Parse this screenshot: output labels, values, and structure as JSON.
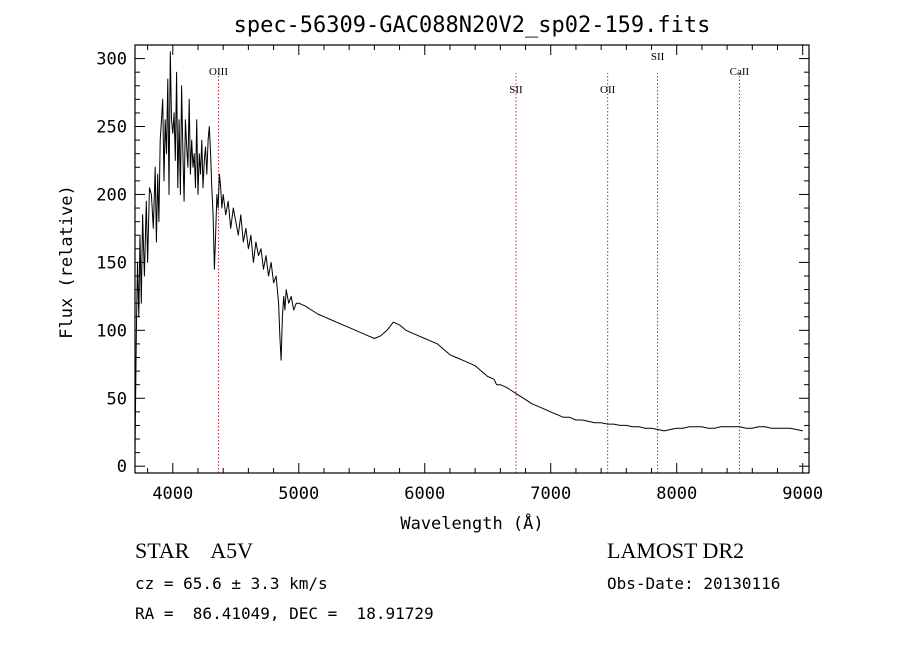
{
  "chart_data": {
    "type": "line",
    "title": "spec-56309-GAC088N20V2_sp02-159.fits",
    "xlabel": "Wavelength (Å)",
    "ylabel": "Flux (relative)",
    "xlim": [
      3700,
      9050
    ],
    "ylim": [
      -5,
      310
    ],
    "xticks": [
      4000,
      5000,
      6000,
      7000,
      8000,
      9000
    ],
    "yticks": [
      0,
      50,
      100,
      150,
      200,
      250,
      300
    ],
    "grid": false,
    "line_color": "#000000",
    "marker_color": "#b03030",
    "series": [
      {
        "x": [
          3700,
          3710,
          3720,
          3730,
          3740,
          3750,
          3760,
          3775,
          3790,
          3800,
          3815,
          3830,
          3845,
          3860,
          3870,
          3880,
          3890,
          3900,
          3910,
          3920,
          3930,
          3940,
          3950,
          3960,
          3970,
          3980,
          3990,
          4000,
          4010,
          4020,
          4030,
          4040,
          4050,
          4060,
          4070,
          4080,
          4090,
          4100,
          4110,
          4120,
          4130,
          4140,
          4150,
          4160,
          4170,
          4180,
          4190,
          4200,
          4210,
          4220,
          4230,
          4240,
          4250,
          4260,
          4270,
          4280,
          4290,
          4300,
          4310,
          4320,
          4330,
          4340,
          4350,
          4360,
          4370,
          4380,
          4390,
          4400,
          4420,
          4440,
          4460,
          4480,
          4500,
          4520,
          4540,
          4560,
          4580,
          4600,
          4620,
          4640,
          4660,
          4680,
          4700,
          4720,
          4740,
          4760,
          4780,
          4800,
          4820,
          4840,
          4850,
          4860,
          4870,
          4880,
          4890,
          4900,
          4920,
          4940,
          4960,
          4980,
          5000,
          5050,
          5100,
          5150,
          5200,
          5250,
          5300,
          5350,
          5400,
          5450,
          5500,
          5550,
          5600,
          5650,
          5700,
          5750,
          5800,
          5850,
          5900,
          5950,
          6000,
          6050,
          6100,
          6150,
          6200,
          6250,
          6300,
          6350,
          6400,
          6450,
          6500,
          6550,
          6560,
          6570,
          6600,
          6650,
          6700,
          6750,
          6800,
          6850,
          6900,
          6950,
          7000,
          7050,
          7100,
          7150,
          7200,
          7250,
          7300,
          7350,
          7400,
          7450,
          7500,
          7550,
          7600,
          7650,
          7700,
          7750,
          7800,
          7850,
          7900,
          7950,
          8000,
          8050,
          8100,
          8150,
          8200,
          8250,
          8300,
          8350,
          8400,
          8450,
          8500,
          8550,
          8600,
          8650,
          8700,
          8750,
          8800,
          8850,
          8900,
          8950,
          9000
        ],
        "y": [
          10,
          95,
          150,
          110,
          170,
          120,
          185,
          140,
          195,
          150,
          205,
          200,
          175,
          220,
          165,
          215,
          180,
          240,
          255,
          270,
          210,
          255,
          230,
          285,
          200,
          305,
          255,
          245,
          260,
          225,
          290,
          205,
          255,
          200,
          280,
          230,
          195,
          255,
          235,
          220,
          270,
          215,
          240,
          220,
          230,
          205,
          255,
          200,
          230,
          215,
          240,
          205,
          225,
          235,
          215,
          240,
          250,
          230,
          205,
          185,
          145,
          170,
          200,
          190,
          215,
          205,
          190,
          200,
          185,
          195,
          175,
          190,
          180,
          170,
          185,
          165,
          175,
          160,
          170,
          150,
          165,
          155,
          160,
          145,
          155,
          140,
          150,
          135,
          140,
          120,
          95,
          78,
          110,
          125,
          115,
          130,
          120,
          125,
          115,
          120,
          120,
          118,
          115,
          112,
          110,
          108,
          106,
          104,
          102,
          100,
          98,
          96,
          94,
          96,
          100,
          106,
          104,
          100,
          98,
          96,
          94,
          92,
          90,
          86,
          82,
          80,
          78,
          76,
          74,
          70,
          66,
          64,
          62,
          60,
          60,
          58,
          55,
          52,
          49,
          46,
          44,
          42,
          40,
          38,
          36,
          36,
          34,
          34,
          33,
          32,
          32,
          31,
          31,
          30,
          30,
          29,
          29,
          28,
          28,
          27,
          26,
          27,
          28,
          28,
          29,
          29,
          29,
          28,
          28,
          29,
          29,
          29,
          29,
          28,
          28,
          29,
          29,
          28,
          28,
          28,
          28,
          27,
          26
        ]
      }
    ],
    "lines": [
      {
        "label": "OIII",
        "x": 4363
      },
      {
        "label": "SII",
        "x": 6724
      },
      {
        "label": "OII",
        "x": 7452
      },
      {
        "label": "SII",
        "x": 7848
      },
      {
        "label": "CaII",
        "x": 8498
      }
    ]
  },
  "info": {
    "object": "STAR    A5V",
    "survey": "LAMOST DR2",
    "redshift": "cz = 65.6 ± 3.3 km/s",
    "obs_date": "Obs-Date: 20130116",
    "coords": "RA =  86.41049, DEC =  18.91729"
  }
}
